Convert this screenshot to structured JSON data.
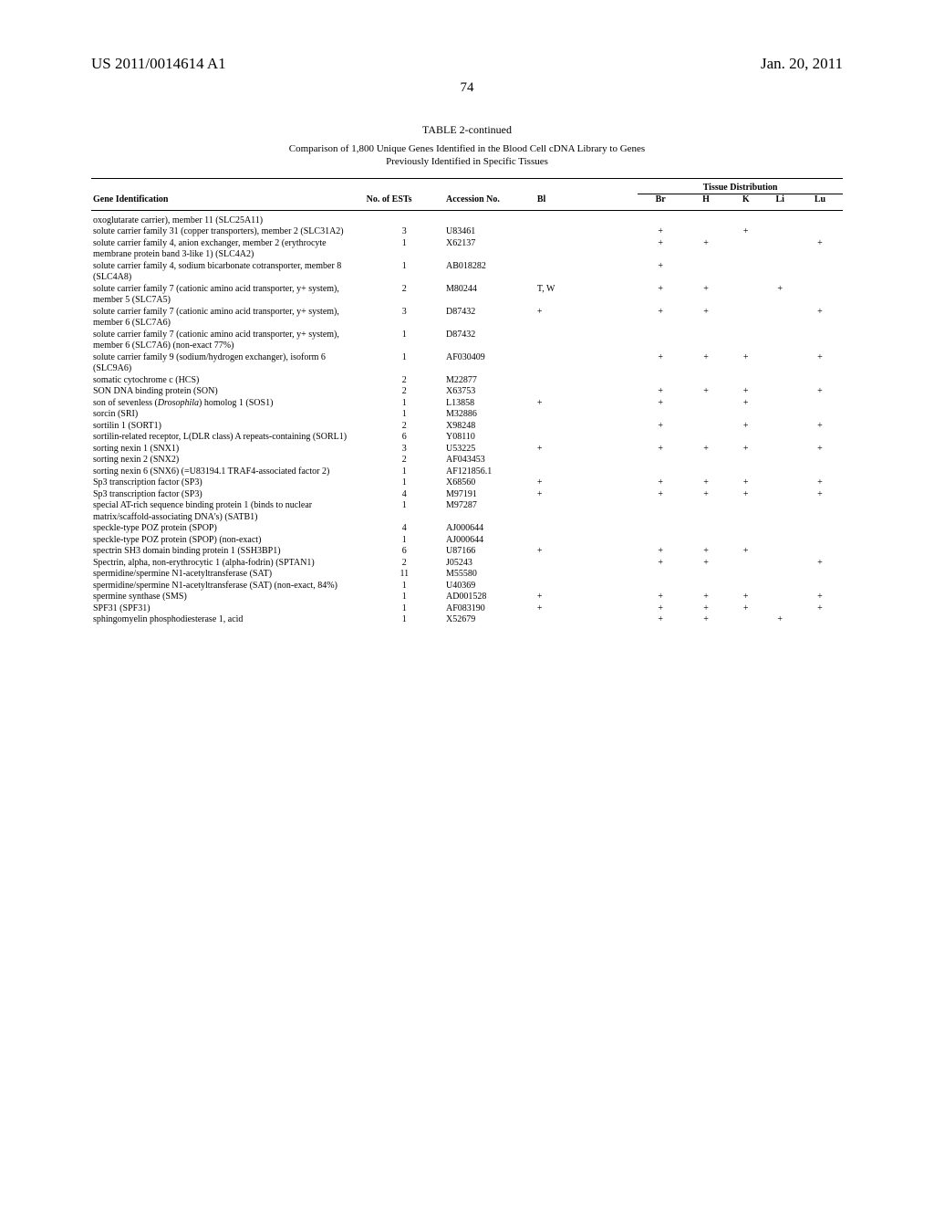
{
  "header": {
    "pub_number": "US 2011/0014614 A1",
    "date": "Jan. 20, 2011",
    "page_number": "74"
  },
  "table": {
    "title": "TABLE 2-continued",
    "subtitle_line1": "Comparison of 1,800 Unique Genes Identified in the Blood Cell cDNA Library to Genes",
    "subtitle_line2": "Previously Identified in Specific Tissues",
    "columns": {
      "gene": "Gene Identification",
      "ests": "No. of ESTs",
      "accession": "Accession No.",
      "bl": "Bl",
      "br": "Br",
      "h": "H",
      "k": "K",
      "li": "Li",
      "lu": "Lu",
      "tissue_dist": "Tissue Distribution"
    },
    "rows": [
      {
        "gene": "oxoglutarate carrier), member 11 (SLC25A11)",
        "ests": "",
        "acc": "",
        "bl": "",
        "br": "",
        "h": "",
        "k": "",
        "li": "",
        "lu": ""
      },
      {
        "gene": "solute carrier family 31 (copper transporters), member 2 (SLC31A2)",
        "ests": "3",
        "acc": "U83461",
        "bl": "",
        "br": "+",
        "h": "",
        "k": "+",
        "li": "",
        "lu": ""
      },
      {
        "gene": "solute carrier family 4, anion exchanger, member 2 (erythrocyte membrane protein band 3-like 1) (SLC4A2)",
        "ests": "1",
        "acc": "X62137",
        "bl": "",
        "br": "+",
        "h": "+",
        "k": "",
        "li": "",
        "lu": "+"
      },
      {
        "gene": "solute carrier family 4, sodium bicarbonate cotransporter, member 8 (SLC4A8)",
        "ests": "1",
        "acc": "AB018282",
        "bl": "",
        "br": "+",
        "h": "",
        "k": "",
        "li": "",
        "lu": ""
      },
      {
        "gene": "solute carrier family 7 (cationic amino acid transporter, y+ system), member 5 (SLC7A5)",
        "ests": "2",
        "acc": "M80244",
        "bl": "T, W",
        "br": "+",
        "h": "+",
        "k": "",
        "li": "+",
        "lu": ""
      },
      {
        "gene": "solute carrier family 7 (cationic amino acid transporter, y+ system), member 6 (SLC7A6)",
        "ests": "3",
        "acc": "D87432",
        "bl": "+",
        "br": "+",
        "h": "+",
        "k": "",
        "li": "",
        "lu": "+"
      },
      {
        "gene": "solute carrier family 7 (cationic amino acid transporter, y+ system), member 6 (SLC7A6) (non-exact 77%)",
        "ests": "1",
        "acc": "D87432",
        "bl": "",
        "br": "",
        "h": "",
        "k": "",
        "li": "",
        "lu": ""
      },
      {
        "gene": "solute carrier family 9 (sodium/hydrogen exchanger), isoform 6 (SLC9A6)",
        "ests": "1",
        "acc": "AF030409",
        "bl": "",
        "br": "+",
        "h": "+",
        "k": "+",
        "li": "",
        "lu": "+"
      },
      {
        "gene": "somatic cytochrome c (HCS)",
        "ests": "2",
        "acc": "M22877",
        "bl": "",
        "br": "",
        "h": "",
        "k": "",
        "li": "",
        "lu": ""
      },
      {
        "gene": "SON DNA binding protein (SON)",
        "ests": "2",
        "acc": "X63753",
        "bl": "",
        "br": "+",
        "h": "+",
        "k": "+",
        "li": "",
        "lu": "+"
      },
      {
        "gene": "son of sevenless (Drosophila) homolog 1 (SOS1)",
        "ests": "1",
        "acc": "L13858",
        "bl": "+",
        "br": "+",
        "h": "",
        "k": "+",
        "li": "",
        "lu": "",
        "italic": true
      },
      {
        "gene": "sorcin (SRI)",
        "ests": "1",
        "acc": "M32886",
        "bl": "",
        "br": "",
        "h": "",
        "k": "",
        "li": "",
        "lu": ""
      },
      {
        "gene": "sortilin 1 (SORT1)",
        "ests": "2",
        "acc": "X98248",
        "bl": "",
        "br": "+",
        "h": "",
        "k": "+",
        "li": "",
        "lu": "+"
      },
      {
        "gene": "sortilin-related receptor, L(DLR class) A repeats-containing (SORL1)",
        "ests": "6",
        "acc": "Y08110",
        "bl": "",
        "br": "",
        "h": "",
        "k": "",
        "li": "",
        "lu": ""
      },
      {
        "gene": "sorting nexin 1 (SNX1)",
        "ests": "3",
        "acc": "U53225",
        "bl": "+",
        "br": "+",
        "h": "+",
        "k": "+",
        "li": "",
        "lu": "+"
      },
      {
        "gene": "sorting nexin 2 (SNX2)",
        "ests": "2",
        "acc": "AF043453",
        "bl": "",
        "br": "",
        "h": "",
        "k": "",
        "li": "",
        "lu": ""
      },
      {
        "gene": "sorting nexin 6 (SNX6) (=U83194.1 TRAF4-associated factor 2)",
        "ests": "1",
        "acc": "AF121856.1",
        "bl": "",
        "br": "",
        "h": "",
        "k": "",
        "li": "",
        "lu": ""
      },
      {
        "gene": "Sp3 transcription factor (SP3)",
        "ests": "1",
        "acc": "X68560",
        "bl": "+",
        "br": "+",
        "h": "+",
        "k": "+",
        "li": "",
        "lu": "+"
      },
      {
        "gene": "Sp3 transcription factor (SP3)",
        "ests": "4",
        "acc": "M97191",
        "bl": "+",
        "br": "+",
        "h": "+",
        "k": "+",
        "li": "",
        "lu": "+"
      },
      {
        "gene": "special AT-rich sequence binding protein 1 (binds to nuclear matrix/scaffold-associating DNA's) (SATB1)",
        "ests": "1",
        "acc": "M97287",
        "bl": "",
        "br": "",
        "h": "",
        "k": "",
        "li": "",
        "lu": ""
      },
      {
        "gene": "speckle-type POZ protein (SPOP)",
        "ests": "4",
        "acc": "AJ000644",
        "bl": "",
        "br": "",
        "h": "",
        "k": "",
        "li": "",
        "lu": ""
      },
      {
        "gene": "speckle-type POZ protein (SPOP) (non-exact)",
        "ests": "1",
        "acc": "AJ000644",
        "bl": "",
        "br": "",
        "h": "",
        "k": "",
        "li": "",
        "lu": ""
      },
      {
        "gene": "spectrin SH3 domain binding protein 1 (SSH3BP1)",
        "ests": "6",
        "acc": "U87166",
        "bl": "+",
        "br": "+",
        "h": "+",
        "k": "+",
        "li": "",
        "lu": ""
      },
      {
        "gene": "Spectrin, alpha, non-erythrocytic 1 (alpha-fodrin) (SPTAN1)",
        "ests": "2",
        "acc": "J05243",
        "bl": "",
        "br": "+",
        "h": "+",
        "k": "",
        "li": "",
        "lu": "+"
      },
      {
        "gene": "spermidine/spermine N1-acetyltransferase (SAT)",
        "ests": "11",
        "acc": "M55580",
        "bl": "",
        "br": "",
        "h": "",
        "k": "",
        "li": "",
        "lu": ""
      },
      {
        "gene": "spermidine/spermine N1-acetyltransferase (SAT) (non-exact, 84%)",
        "ests": "1",
        "acc": "U40369",
        "bl": "",
        "br": "",
        "h": "",
        "k": "",
        "li": "",
        "lu": ""
      },
      {
        "gene": "spermine synthase (SMS)",
        "ests": "1",
        "acc": "AD001528",
        "bl": "+",
        "br": "+",
        "h": "+",
        "k": "+",
        "li": "",
        "lu": "+"
      },
      {
        "gene": "SPF31 (SPF31)",
        "ests": "1",
        "acc": "AF083190",
        "bl": "+",
        "br": "+",
        "h": "+",
        "k": "+",
        "li": "",
        "lu": "+"
      },
      {
        "gene": "sphingomyelin phosphodiesterase 1, acid",
        "ests": "1",
        "acc": "X52679",
        "bl": "",
        "br": "+",
        "h": "+",
        "k": "",
        "li": "+",
        "lu": ""
      }
    ]
  }
}
